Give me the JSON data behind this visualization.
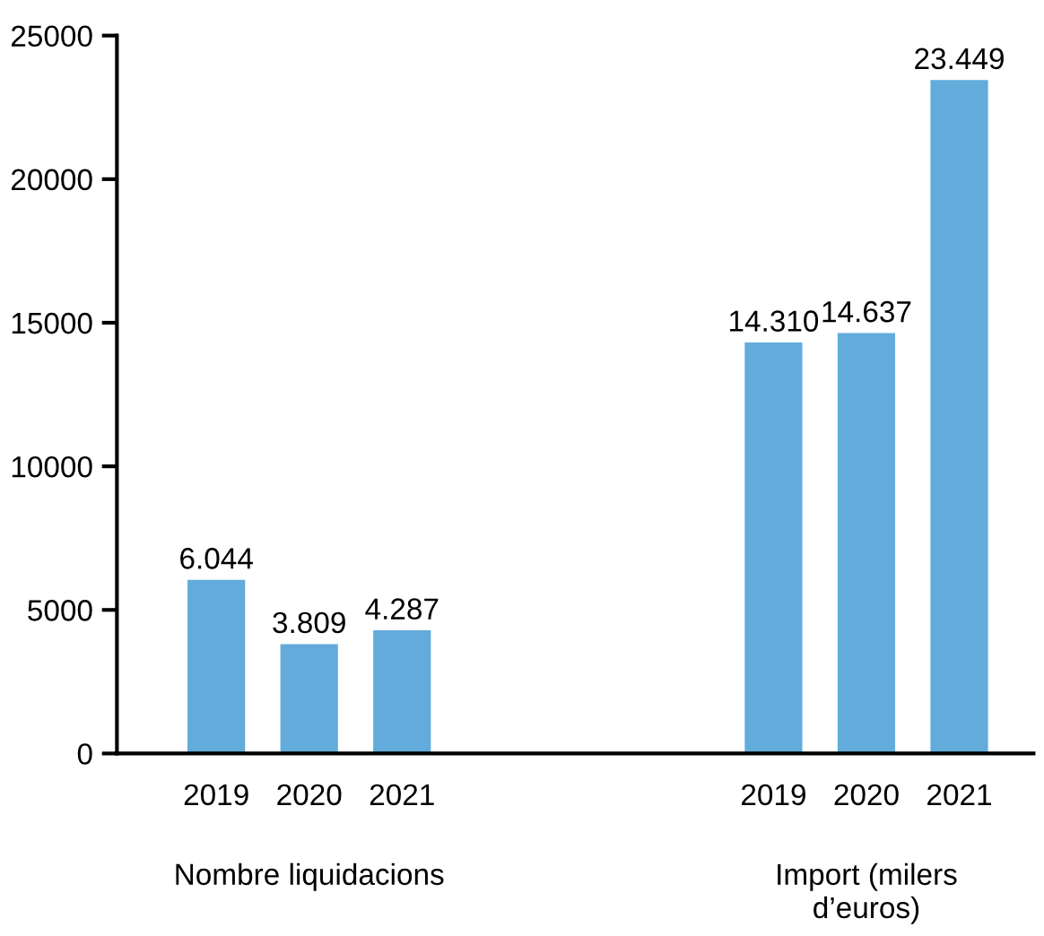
{
  "chart_data": {
    "type": "bar",
    "categories": [
      "2019",
      "2020",
      "2021",
      null,
      null,
      null,
      "2019",
      "2020",
      "2021"
    ],
    "values": [
      6044,
      3809,
      4287,
      null,
      null,
      null,
      14310,
      14637,
      23449
    ],
    "value_labels": [
      "6.044",
      "3.809",
      "4.287",
      null,
      null,
      null,
      "14.310",
      "14.637",
      "23.449"
    ],
    "color": "#62abdb",
    "ylim": [
      0,
      25000
    ],
    "yticks": [
      0,
      5000,
      10000,
      15000,
      20000,
      25000
    ],
    "grid": false,
    "legend": false,
    "annotations": [
      "Nombre liquidacions",
      "Import (milers\nd’euros)"
    ]
  }
}
